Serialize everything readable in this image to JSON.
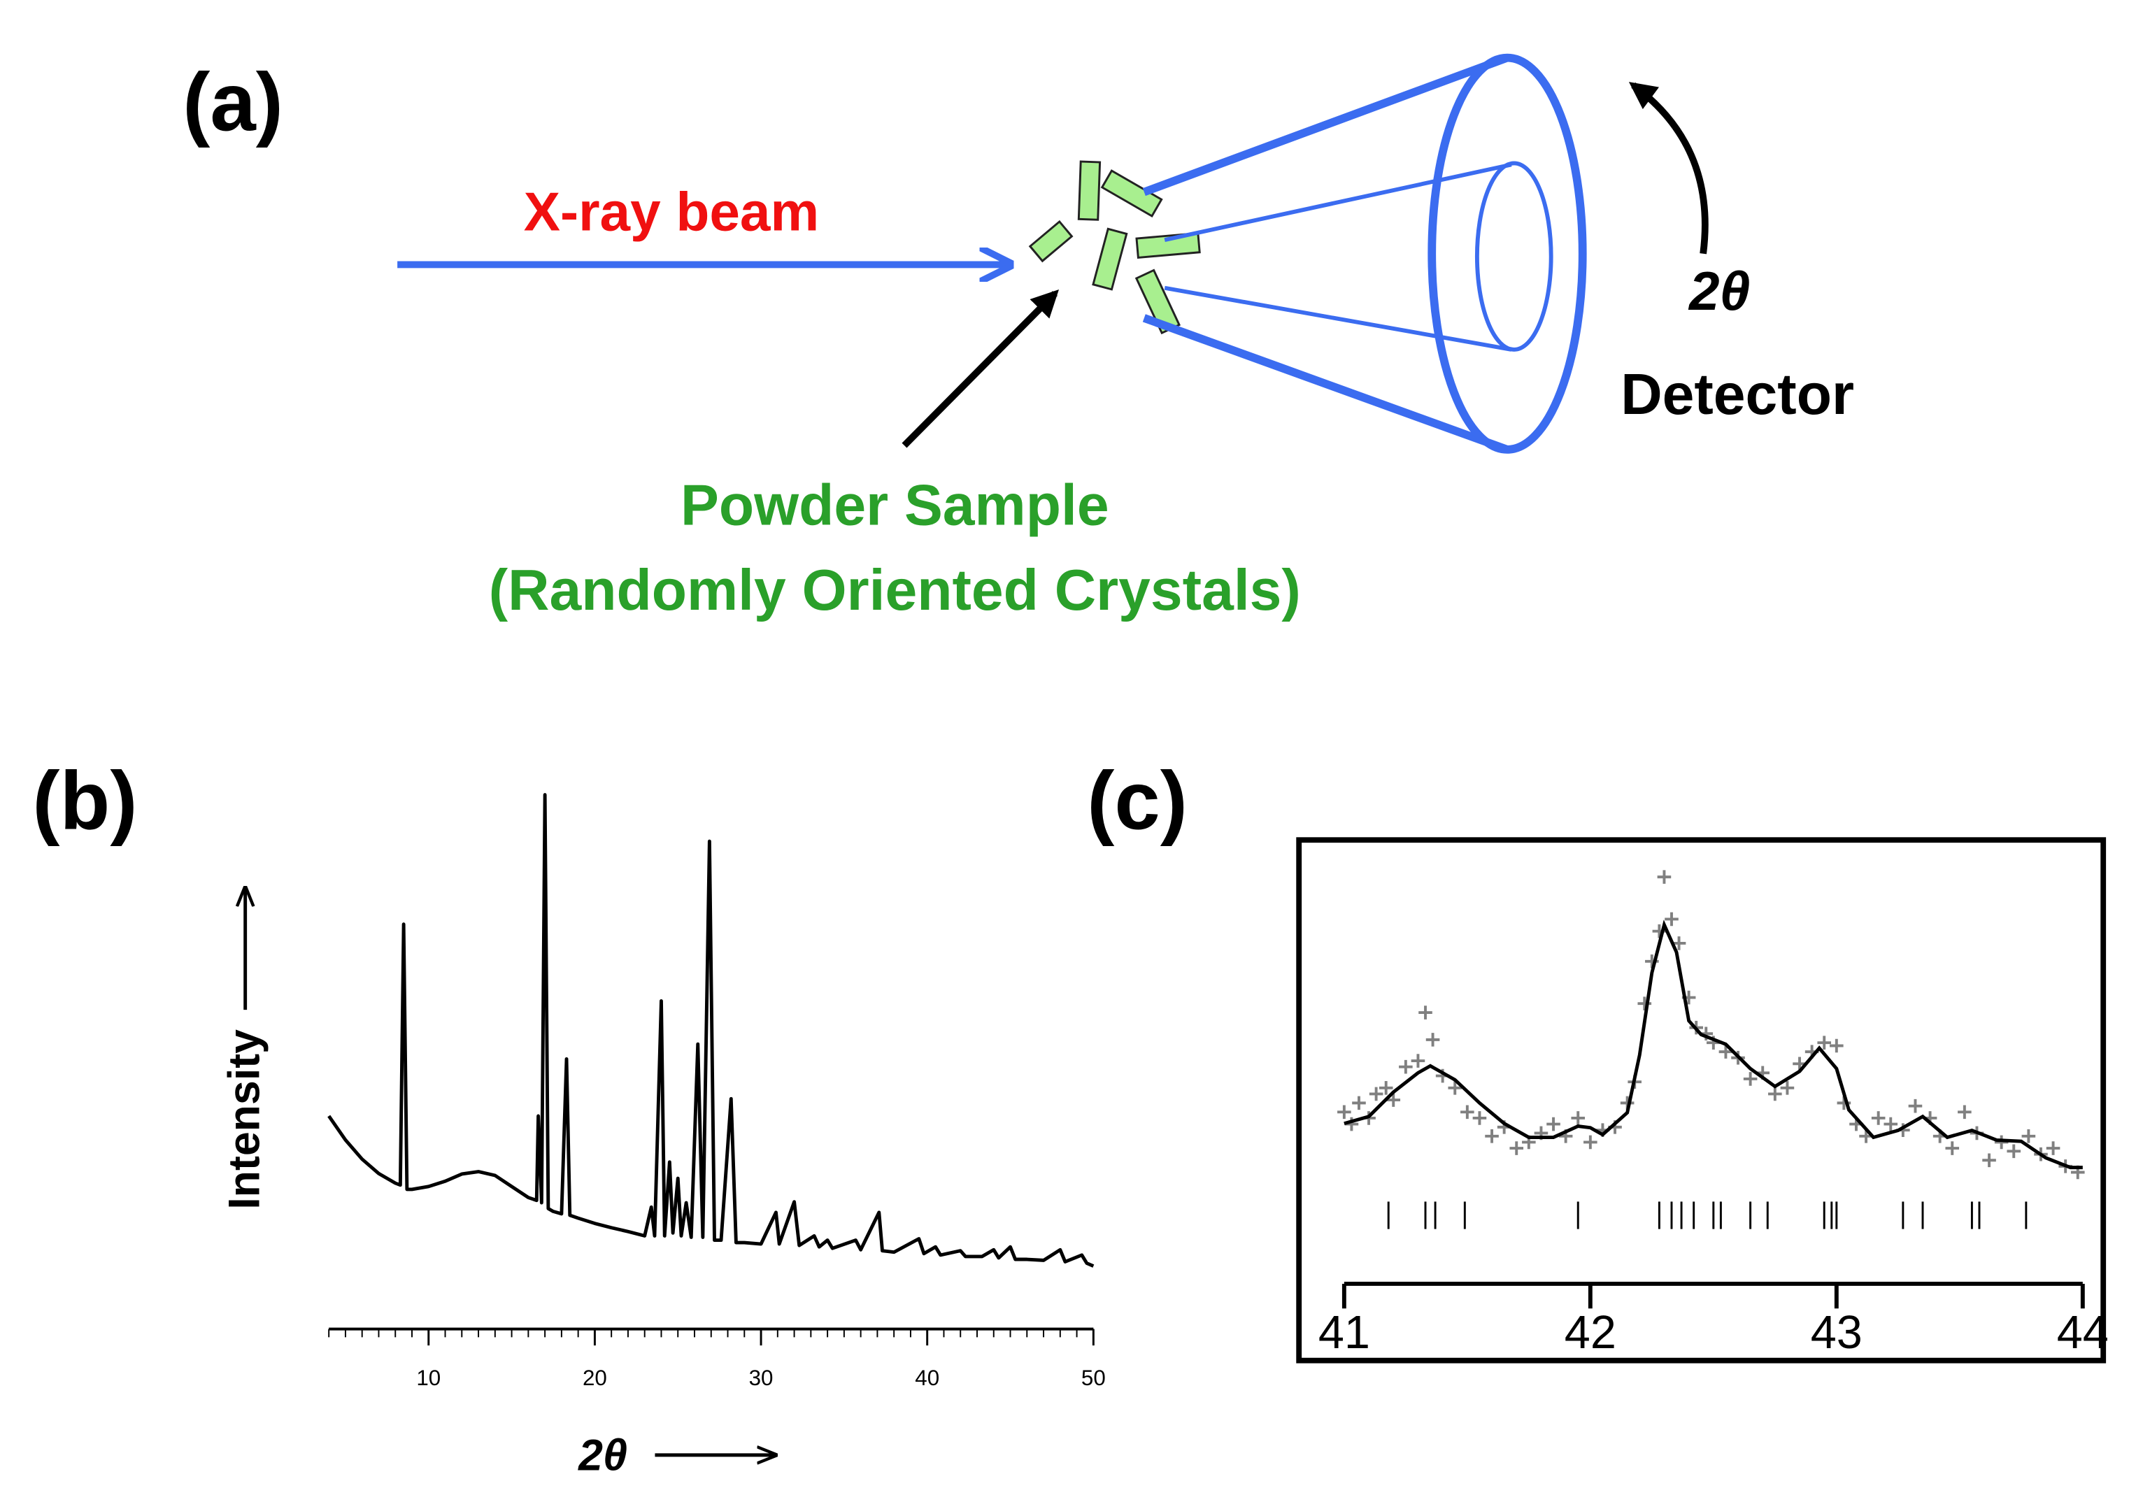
{
  "diagram": {
    "panel_label": "(a)",
    "beam_label": "X-ray beam",
    "sample_label": [
      "Powder Sample",
      "(Randomly Oriented Crystals)"
    ],
    "angle_label": "2θ",
    "detector_label": "Detector"
  },
  "chart_data": [
    {
      "type": "line",
      "panel_label": "(b)",
      "x_label": "2θ",
      "y_label": "Intensity",
      "color": "#000000",
      "x": [
        4,
        5,
        6,
        7,
        8,
        8.3,
        8.5,
        8.7,
        9,
        10,
        11,
        12,
        13,
        14,
        15,
        16,
        16.5,
        16.6,
        16.8,
        17,
        17.2,
        17.5,
        18,
        18.3,
        18.5,
        19,
        20,
        21,
        22,
        23,
        23.4,
        23.6,
        24,
        24.2,
        24.5,
        24.7,
        25,
        25.2,
        25.5,
        25.8,
        26.2,
        26.5,
        26.9,
        27.2,
        27.6,
        28.2,
        28.5,
        29,
        30,
        30.9,
        31.1,
        32,
        32.3,
        33.2,
        33.5,
        34,
        34.3,
        35.7,
        36,
        37.1,
        37.3,
        38,
        39.5,
        39.8,
        40.5,
        40.8,
        42,
        42.3,
        43.3,
        44,
        44.3,
        45,
        45.3,
        46,
        47,
        48,
        48.3,
        49.3,
        49.6,
        50
      ],
      "values": [
        33,
        28,
        24,
        21,
        19,
        18.6,
        73,
        17.7,
        17.7,
        18.3,
        19.4,
        20.9,
        21.4,
        20.6,
        18.3,
        16,
        15.4,
        33,
        14.9,
        100,
        13.7,
        13.1,
        12.6,
        44.9,
        12.3,
        11.7,
        10.6,
        9.7,
        8.9,
        8,
        14,
        8,
        57,
        8,
        23.4,
        8.6,
        20,
        8,
        14.9,
        7.7,
        48,
        7.7,
        90.3,
        7.1,
        7.1,
        36.6,
        6.6,
        6.6,
        6.3,
        12.9,
        6.3,
        15.1,
        6,
        8,
        5.7,
        7.1,
        5.4,
        7.1,
        5.1,
        12.9,
        4.9,
        4.6,
        7.4,
        4.3,
        5.7,
        4,
        4.9,
        3.7,
        3.7,
        5.1,
        3.4,
        5.7,
        3.1,
        3.1,
        2.9,
        5.1,
        2.6,
        4,
        2.3,
        1.7
      ],
      "xlim": [
        4,
        50
      ],
      "xticks": [
        10,
        20,
        30,
        40,
        50
      ],
      "x_minor_tick_step": 1,
      "ylim": [
        0,
        100
      ]
    },
    {
      "type": "scatter",
      "panel_label": "(c)",
      "observed": {
        "color": "#808080",
        "x": [
          41.0,
          41.03,
          41.06,
          41.1,
          41.13,
          41.17,
          41.2,
          41.25,
          41.3,
          41.33,
          41.36,
          41.4,
          41.45,
          41.5,
          41.55,
          41.6,
          41.65,
          41.7,
          41.75,
          41.8,
          41.85,
          41.9,
          41.95,
          42.0,
          42.05,
          42.1,
          42.15,
          42.18,
          42.22,
          42.25,
          42.28,
          42.3,
          42.33,
          42.36,
          42.4,
          42.43,
          42.47,
          42.5,
          42.55,
          42.6,
          42.65,
          42.7,
          42.75,
          42.8,
          42.85,
          42.9,
          42.95,
          43.0,
          43.03,
          43.08,
          43.12,
          43.17,
          43.22,
          43.27,
          43.32,
          43.38,
          43.42,
          43.47,
          43.52,
          43.57,
          43.62,
          43.67,
          43.72,
          43.78,
          43.83,
          43.88,
          43.93,
          43.98
        ],
        "values": [
          22,
          18,
          25,
          20,
          28,
          30,
          26,
          37,
          39,
          55,
          46,
          34,
          30,
          22,
          20,
          14,
          17,
          10,
          12,
          15,
          18,
          14,
          20,
          12,
          16,
          17,
          25,
          32,
          58,
          72,
          82,
          100,
          86,
          78,
          60,
          50,
          48,
          45,
          42,
          40,
          33,
          35,
          28,
          30,
          38,
          42,
          45,
          44,
          25,
          18,
          14,
          20,
          18,
          16,
          24,
          20,
          14,
          10,
          22,
          15,
          6,
          12,
          9,
          14,
          8,
          10,
          4,
          2
        ]
      },
      "fit": {
        "color": "#000000",
        "x": [
          41.0,
          41.1,
          41.2,
          41.3,
          41.35,
          41.45,
          41.55,
          41.65,
          41.75,
          41.85,
          41.95,
          42.0,
          42.05,
          42.15,
          42.2,
          42.25,
          42.3,
          42.35,
          42.4,
          42.45,
          42.55,
          42.65,
          42.75,
          42.85,
          42.93,
          43.0,
          43.05,
          43.15,
          43.25,
          43.35,
          43.45,
          43.55,
          43.65,
          43.75,
          43.85,
          43.95,
          44.0
        ],
        "values": [
          18.2,
          20.5,
          28.6,
          35,
          37.3,
          32.7,
          25,
          18.2,
          13.6,
          13.6,
          17.3,
          16.8,
          14.5,
          21.8,
          40.9,
          68.2,
          84.1,
          75,
          52.3,
          47.7,
          44.5,
          36.4,
          30.5,
          35.5,
          43.2,
          36.4,
          22.7,
          13.6,
          15.9,
          20.5,
          13.6,
          15.9,
          12.7,
          12.3,
          6.8,
          3.6,
          3.6
        ]
      },
      "reflections": [
        41.18,
        41.33,
        41.37,
        41.49,
        41.95,
        42.28,
        42.33,
        42.37,
        42.42,
        42.5,
        42.53,
        42.65,
        42.72,
        42.95,
        42.98,
        43.0,
        43.27,
        43.35,
        43.55,
        43.58,
        43.77
      ],
      "xlim": [
        41,
        44
      ],
      "xticks": [
        41,
        42,
        43,
        44
      ],
      "ylim": [
        0,
        100
      ]
    }
  ]
}
